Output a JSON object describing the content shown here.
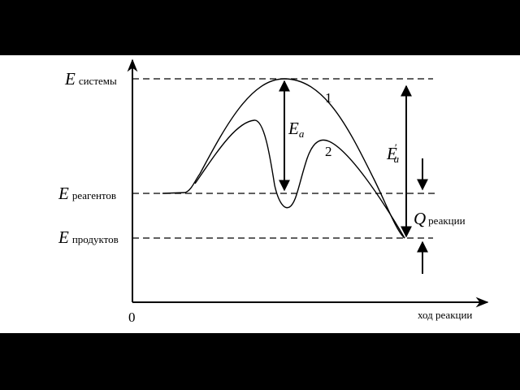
{
  "labels": {
    "e_system": {
      "symbol": "E",
      "sub": "системы"
    },
    "e_reagents": {
      "symbol": "E",
      "sub": "реагентов"
    },
    "e_products": {
      "symbol": "E",
      "sub": "продуктов"
    },
    "origin": "0",
    "x_axis": "ход реакции",
    "curve1": "1",
    "curve2": "2",
    "ea": {
      "symbol": "E",
      "sub": "a"
    },
    "ea_prime": {
      "symbol": "E",
      "prime": "′",
      "sub": "a"
    },
    "q": {
      "symbol": "Q",
      "sub": "реакции"
    }
  },
  "colors": {
    "background": "#ffffff",
    "letterbox": "#000000",
    "lines": "#000000"
  }
}
